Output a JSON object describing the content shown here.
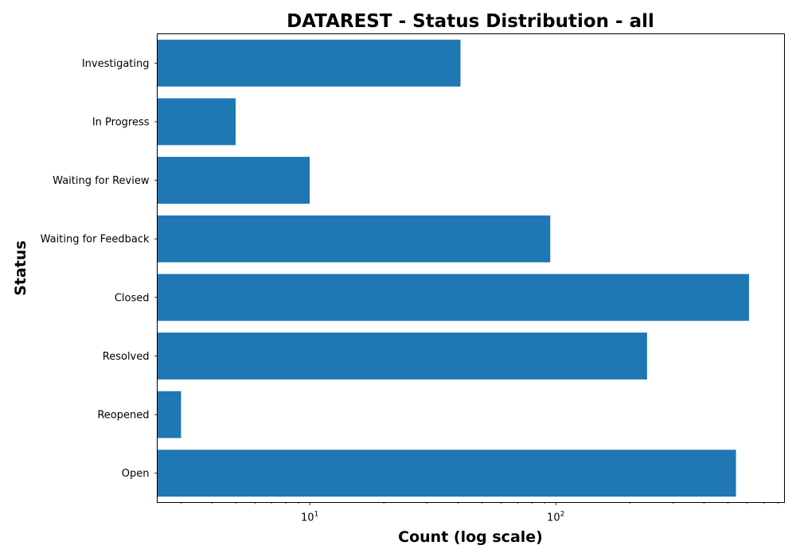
{
  "chart_data": {
    "type": "bar",
    "orientation": "horizontal",
    "title": "DATAREST - Status Distribution - all",
    "xlabel": "Count (log scale)",
    "ylabel": "Status",
    "x_scale": "log",
    "xlim": [
      2.4,
      850
    ],
    "categories": [
      "Investigating",
      "In Progress",
      "Waiting for Review",
      "Waiting for Feedback",
      "Closed",
      "Resolved",
      "Reopened",
      "Open"
    ],
    "values": [
      41,
      5,
      10,
      95,
      610,
      235,
      3,
      540
    ],
    "x_ticks": [
      {
        "value": 10,
        "base": "10",
        "exp": "1"
      },
      {
        "value": 100,
        "base": "10",
        "exp": "2"
      }
    ],
    "bar_color": "#1f77b4",
    "grid": false,
    "legend": "none"
  }
}
